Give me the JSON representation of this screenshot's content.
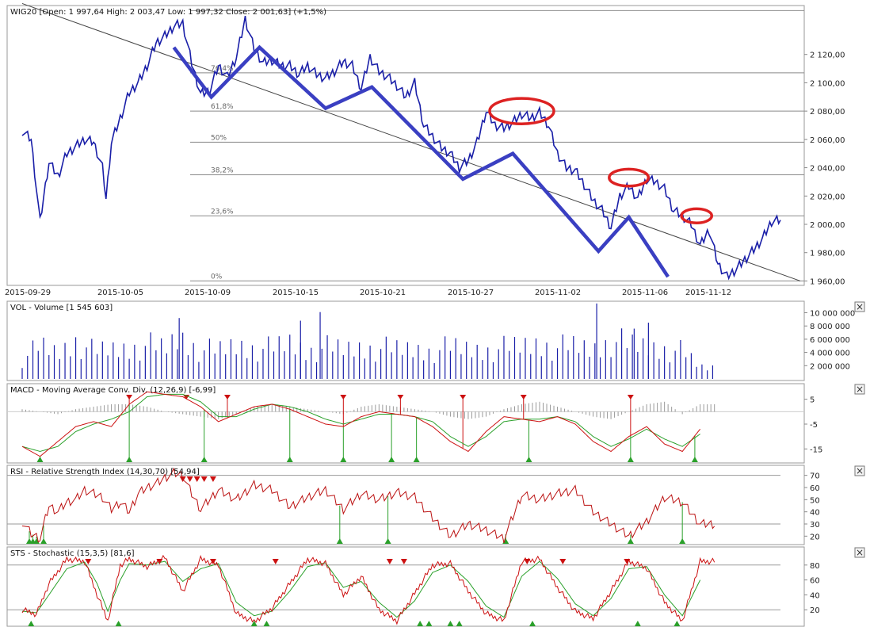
{
  "header": {
    "instrument_title": "WIG20 [Open: 1 997,64  High: 2 003,47  Low: 1 997,32  Close: 2 001,63]  (+1,5%)"
  },
  "colors": {
    "price": "#1a1fa8",
    "pattern": "#3a3fc2",
    "ellipse": "#dd2222",
    "signal_up": "#2aa02a",
    "signal_down": "#cc1111",
    "macd": "#cc1111",
    "macd_signal": "#2aa02a",
    "rsi": "#bb1111",
    "sto_k": "#cc1111",
    "sto_d": "#2aa02a",
    "volume": "#1a1fa8"
  },
  "main": {
    "x_ticks": [
      "2015-09-29",
      "2015-10-05",
      "2015-10-09",
      "2015-10-15",
      "2015-10-21",
      "2015-10-27",
      "2015-11-02",
      "2015-11-06",
      "2015-11-12"
    ],
    "y_ticks": [
      "2 120,00",
      "2 100,00",
      "2 080,00",
      "2 060,00",
      "2 040,00",
      "2 020,00",
      "2 000,00",
      "1 980,00",
      "1 960,00"
    ],
    "fib_labels": [
      "76,4%",
      "61,8%",
      "50%",
      "38,2%",
      "23,6%",
      "0%"
    ]
  },
  "panels": {
    "volume": {
      "title": "VOL - Volume [1 545 603]",
      "y_ticks": [
        "10 000 000",
        "8 000 000",
        "6 000 000",
        "4 000 000",
        "2 000 000"
      ]
    },
    "macd": {
      "title": "MACD - Moving Average Conv. Div. (12,26,9) [-6,99]",
      "y_ticks": [
        "5",
        "-5",
        "-15"
      ]
    },
    "rsi": {
      "title": "RSI - Relative Strength Index (14,30,70) [54,94]",
      "y_ticks": [
        "70",
        "60",
        "50",
        "40",
        "30",
        "20"
      ]
    },
    "sto": {
      "title": "STS - Stochastic (15,3,5) [81,6]",
      "y_ticks": [
        "80",
        "60",
        "40",
        "20"
      ]
    }
  },
  "close_button_label": "×",
  "chart_data": [
    {
      "type": "line",
      "title": "WIG20 [Open: 1 997,64  High: 2 003,47  Low: 1 997,32  Close: 2 001,63]  (+1,5%)",
      "x_tick_labels": [
        "2015-09-29",
        "2015-10-05",
        "2015-10-09",
        "2015-10-15",
        "2015-10-21",
        "2015-10-27",
        "2015-11-02",
        "2015-11-06",
        "2015-11-12"
      ],
      "ylim": [
        1958,
        2154
      ],
      "y_ticks": [
        2120,
        2100,
        2080,
        2060,
        2040,
        2020,
        2000,
        1980,
        1960
      ],
      "fibonacci_levels": [
        {
          "label": "76,4%",
          "value": 2107
        },
        {
          "label": "61,8%",
          "value": 2080
        },
        {
          "label": "50%",
          "value": 2058
        },
        {
          "label": "38,2%",
          "value": 2035
        },
        {
          "label": "23,6%",
          "value": 2006
        },
        {
          "label": "0%",
          "value": 1960
        },
        {
          "label": "",
          "value": 2151
        }
      ],
      "price_path": {
        "t": [
          0,
          5,
          10,
          15,
          20,
          25,
          30,
          35,
          40,
          45,
          47,
          50,
          55,
          60,
          65,
          70,
          75,
          80,
          85,
          90,
          95,
          100,
          105,
          110,
          115,
          120,
          125,
          130,
          135,
          140,
          145,
          150,
          155,
          160,
          165,
          170,
          175,
          180,
          185,
          190,
          195,
          200,
          205,
          210,
          215,
          220,
          225,
          230,
          235,
          240,
          245,
          250,
          255,
          260,
          265,
          270,
          275,
          280,
          285,
          290,
          295,
          300,
          305,
          310,
          315,
          320,
          325,
          330,
          335,
          340,
          345,
          350,
          355,
          360,
          365,
          370,
          375,
          380,
          385,
          390,
          395,
          400,
          405,
          410,
          415,
          420,
          425
        ],
        "v": [
          2066,
          2060,
          2002,
          2044,
          2034,
          2050,
          2055,
          2060,
          2058,
          2040,
          2018,
          2058,
          2075,
          2093,
          2100,
          2112,
          2128,
          2133,
          2140,
          2142,
          2114,
          2092,
          2094,
          2112,
          2104,
          2118,
          2145,
          2124,
          2114,
          2116,
          2112,
          2112,
          2106,
          2112,
          2106,
          2103,
          2108,
          2115,
          2112,
          2096,
          2118,
          2108,
          2104,
          2098,
          2090,
          2100,
          2070,
          2062,
          2054,
          2050,
          2040,
          2045,
          2058,
          2080,
          2070,
          2068,
          2072,
          2078,
          2075,
          2079,
          2070,
          2050,
          2040,
          2038,
          2028,
          2017,
          2010,
          1998,
          2020,
          2027,
          2018,
          2032,
          2030,
          2025,
          2010,
          2006,
          2000,
          1985,
          1996,
          1972,
          1963,
          1968,
          1975,
          1982,
          1990,
          2002,
          2003
        ]
      },
      "trendline": {
        "t": [
          0,
          425
        ],
        "v": [
          2156,
          1960
        ]
      },
      "zigzag_pattern": [
        {
          "t": 85,
          "v": 2125
        },
        {
          "t": 106,
          "v": 2090
        },
        {
          "t": 133,
          "v": 2125
        },
        {
          "t": 170,
          "v": 2082
        },
        {
          "t": 196,
          "v": 2097
        },
        {
          "t": 247,
          "v": 2032
        },
        {
          "t": 275,
          "v": 2050
        },
        {
          "t": 323,
          "v": 1981
        },
        {
          "t": 340,
          "v": 2005
        },
        {
          "t": 362,
          "v": 1963
        }
      ],
      "highlight_ellipses": [
        {
          "t": 280,
          "v": 2080,
          "dt": 18,
          "dv": 9
        },
        {
          "t": 340,
          "v": 2033,
          "dt": 11,
          "dv": 6
        },
        {
          "t": 378,
          "v": 2006,
          "dt": 8.5,
          "dv": 5
        }
      ]
    },
    {
      "type": "bar",
      "title": "VOL - Volume [1 545 603]",
      "ylim": [
        0,
        11500000
      ],
      "y_ticks": [
        10000000,
        8000000,
        6000000,
        4000000,
        2000000
      ],
      "anchors_t": [
        0,
        10,
        20,
        30,
        40,
        50,
        60,
        70,
        80,
        88,
        100,
        110,
        120,
        130,
        140,
        150,
        160,
        170,
        180,
        190,
        200,
        210,
        220,
        230,
        240,
        250,
        260,
        270,
        280,
        290,
        300,
        310,
        320,
        330,
        340,
        350,
        360,
        370,
        380
      ],
      "anchors_v": [
        3000000,
        5000000,
        4000000,
        6000000,
        4200000,
        4500000,
        4800000,
        5200000,
        4600000,
        6500000,
        4500000,
        4300000,
        5200000,
        4800000,
        4600000,
        5500000,
        4400000,
        4800000,
        4500000,
        4900000,
        4700000,
        4500000,
        4600000,
        4300000,
        4800000,
        4600000,
        4500000,
        4700000,
        5000000,
        5500000,
        4800000,
        5000000,
        4600000,
        6000000,
        5200000,
        5000000,
        4700000,
        4200000,
        1800000
      ],
      "spikes": [
        {
          "t": 88,
          "v": 9200000
        },
        {
          "t": 156,
          "v": 8800000
        },
        {
          "t": 167,
          "v": 10100000
        },
        {
          "t": 322,
          "v": 11400000
        },
        {
          "t": 343,
          "v": 7600000
        },
        {
          "t": 351,
          "v": 8500000
        }
      ]
    },
    {
      "type": "line",
      "title": "MACD - Moving Average Conv. Div. (12,26,9) [-6,99]",
      "ylim": [
        -20,
        10
      ],
      "y_ticks": [
        5,
        -5,
        -15
      ],
      "macd": {
        "t": [
          0,
          10,
          20,
          30,
          40,
          50,
          60,
          70,
          80,
          90,
          100,
          110,
          120,
          130,
          140,
          150,
          160,
          170,
          180,
          190,
          200,
          210,
          220,
          230,
          240,
          250,
          260,
          270,
          280,
          290,
          300,
          310,
          320,
          330,
          340,
          350,
          360,
          370,
          380
        ],
        "v": [
          -14,
          -18,
          -12,
          -6,
          -4,
          -6,
          3,
          8,
          7,
          6,
          2,
          -4,
          -1,
          2,
          3,
          1,
          -2,
          -5,
          -6,
          -2,
          0,
          -1,
          -2,
          -6,
          -12,
          -16,
          -8,
          -2,
          -3,
          -4,
          -2,
          -5,
          -12,
          -16,
          -10,
          -6,
          -13,
          -16,
          -7
        ]
      },
      "signal": {
        "t": [
          0,
          10,
          20,
          30,
          40,
          50,
          60,
          70,
          80,
          90,
          100,
          110,
          120,
          130,
          140,
          150,
          160,
          170,
          180,
          190,
          200,
          210,
          220,
          230,
          240,
          250,
          260,
          270,
          280,
          290,
          300,
          310,
          320,
          330,
          340,
          350,
          360,
          370,
          380
        ],
        "v": [
          -14,
          -16,
          -14,
          -8,
          -5,
          -3,
          0,
          6,
          7,
          7,
          4,
          -2,
          -2,
          1,
          3,
          2,
          0,
          -3,
          -5,
          -3,
          -1,
          -1,
          -2,
          -4,
          -10,
          -14,
          -10,
          -4,
          -3,
          -3,
          -2,
          -4,
          -10,
          -14,
          -11,
          -7,
          -11,
          -14,
          -9
        ]
      },
      "histogram_t": [
        0,
        10,
        20,
        30,
        40,
        50,
        60,
        70,
        80,
        90,
        100,
        110,
        120,
        130,
        140,
        150,
        160,
        170,
        180,
        190,
        200,
        210,
        220,
        230,
        240,
        250,
        260,
        270,
        280,
        290,
        300,
        310,
        320,
        330,
        340,
        350,
        360,
        370,
        380
      ],
      "histogram_v": [
        1,
        0,
        -1,
        1,
        2,
        3,
        3,
        2,
        0,
        -1,
        -2,
        -3,
        -1,
        2,
        3,
        2,
        1,
        0,
        -1,
        2,
        3,
        2,
        1,
        0,
        -2,
        -3,
        -2,
        1,
        3,
        4,
        2,
        0,
        -2,
        -3,
        0,
        3,
        4,
        -1,
        3
      ],
      "down_signals_t": [
        60,
        92,
        115,
        180,
        212,
        247,
        281,
        341
      ],
      "up_signals_t": [
        10,
        60,
        102,
        150,
        180,
        207,
        221,
        284,
        341,
        377
      ]
    },
    {
      "type": "line",
      "title": "RSI - Relative Strength Index (14,30,70) [54,94]",
      "ylim": [
        15,
        75
      ],
      "y_ticks": [
        70,
        60,
        50,
        40,
        30,
        20
      ],
      "reference_lines": [
        70,
        30
      ],
      "rsi": {
        "t": [
          0,
          5,
          10,
          15,
          20,
          25,
          30,
          35,
          40,
          45,
          50,
          55,
          60,
          65,
          70,
          75,
          80,
          85,
          90,
          95,
          100,
          110,
          120,
          130,
          140,
          150,
          160,
          170,
          180,
          190,
          200,
          210,
          220,
          230,
          240,
          250,
          260,
          270,
          280,
          290,
          300,
          310,
          320,
          330,
          340,
          350,
          360,
          370,
          380
        ],
        "v": [
          32,
          22,
          18,
          45,
          40,
          48,
          50,
          58,
          55,
          52,
          42,
          48,
          40,
          55,
          60,
          63,
          68,
          72,
          70,
          55,
          42,
          58,
          50,
          62,
          58,
          44,
          52,
          58,
          42,
          55,
          50,
          56,
          52,
          35,
          20,
          30,
          25,
          18,
          54,
          50,
          55,
          58,
          40,
          30,
          20,
          32,
          52,
          48,
          30
        ]
      },
      "down_signals_t": [
        90,
        94,
        98,
        102,
        107
      ],
      "up_signals_t": [
        4,
        6,
        8,
        12,
        178,
        205,
        271,
        341,
        370
      ]
    },
    {
      "type": "line",
      "title": "STS - Stochastic (15,3,5) [81,6]",
      "ylim": [
        0,
        100
      ],
      "y_ticks": [
        80,
        60,
        40,
        20
      ],
      "reference_lines": [
        80,
        20
      ],
      "k": {
        "t": [
          0,
          8,
          15,
          25,
          35,
          42,
          48,
          55,
          60,
          70,
          80,
          90,
          100,
          110,
          120,
          130,
          140,
          150,
          160,
          170,
          180,
          190,
          200,
          210,
          220,
          230,
          240,
          250,
          260,
          270,
          280,
          290,
          300,
          310,
          320,
          330,
          340,
          350,
          360,
          370,
          380
        ],
        "v": [
          20,
          14,
          55,
          88,
          85,
          40,
          5,
          80,
          88,
          78,
          90,
          45,
          88,
          80,
          15,
          4,
          22,
          55,
          88,
          82,
          40,
          65,
          20,
          5,
          42,
          80,
          82,
          45,
          15,
          5,
          85,
          88,
          50,
          18,
          8,
          45,
          85,
          76,
          30,
          5,
          85
        ]
      },
      "d": {
        "t": [
          0,
          8,
          15,
          25,
          35,
          42,
          48,
          55,
          60,
          70,
          80,
          90,
          100,
          110,
          120,
          130,
          140,
          150,
          160,
          170,
          180,
          190,
          200,
          210,
          220,
          230,
          240,
          250,
          260,
          270,
          280,
          290,
          300,
          310,
          320,
          330,
          340,
          350,
          360,
          370,
          380
        ],
        "v": [
          18,
          16,
          40,
          75,
          84,
          55,
          18,
          60,
          82,
          80,
          85,
          58,
          75,
          82,
          30,
          12,
          18,
          45,
          78,
          83,
          50,
          58,
          30,
          10,
          32,
          70,
          80,
          58,
          25,
          10,
          65,
          85,
          62,
          28,
          12,
          35,
          75,
          78,
          40,
          12,
          60
        ]
      },
      "down_signals_t": [
        37,
        77,
        107,
        142,
        206,
        214,
        283,
        303,
        339
      ],
      "up_signals_t": [
        5,
        54,
        130,
        137,
        223,
        228,
        240,
        245,
        286,
        345,
        367
      ]
    }
  ]
}
